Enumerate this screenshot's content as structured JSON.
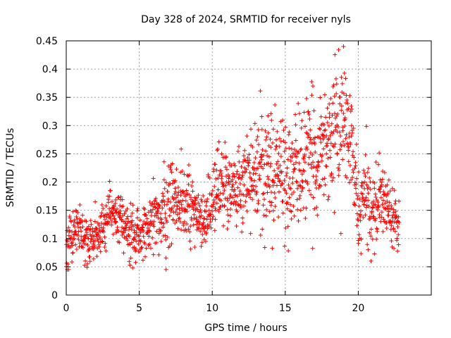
{
  "chart_data": {
    "type": "scatter",
    "title": "Day 328 of 2024, SRMTID for receiver nyls",
    "xlabel": "GPS time / hours",
    "ylabel": "SRMTID / TECUs",
    "xlim": [
      0,
      25
    ],
    "ylim": [
      0,
      0.45
    ],
    "xticks": [
      0,
      5,
      10,
      15,
      20
    ],
    "xtick_labels": [
      "0",
      "5",
      "10",
      "15",
      "20"
    ],
    "yticks": [
      0,
      0.05,
      0.1,
      0.15,
      0.2,
      0.25,
      0.3,
      0.35,
      0.4,
      0.45
    ],
    "ytick_labels": [
      "0",
      "0.05",
      "0.1",
      "0.15",
      "0.2",
      "0.25",
      "0.3",
      "0.35",
      "0.4",
      "0.45"
    ],
    "grid": true,
    "marker": "+",
    "marker_color": "#ff0000",
    "x_range_of_data": [
      0,
      22.8
    ],
    "trend": {
      "x": [
        0,
        0.5,
        1,
        1.5,
        2,
        2.5,
        3,
        3.5,
        4,
        4.5,
        5,
        5.5,
        6,
        6.5,
        7,
        7.5,
        8,
        8.5,
        9,
        9.5,
        10,
        10.5,
        11,
        11.5,
        12,
        12.5,
        13,
        13.5,
        14,
        14.5,
        15,
        15.5,
        16,
        16.5,
        17,
        17.5,
        18,
        18.5,
        19,
        19.5,
        20,
        20.5,
        21,
        21.5,
        22,
        22.5,
        22.8
      ],
      "y": [
        0.08,
        0.12,
        0.11,
        0.09,
        0.11,
        0.12,
        0.16,
        0.13,
        0.12,
        0.11,
        0.1,
        0.11,
        0.13,
        0.14,
        0.16,
        0.18,
        0.17,
        0.15,
        0.13,
        0.12,
        0.18,
        0.19,
        0.2,
        0.19,
        0.2,
        0.21,
        0.22,
        0.22,
        0.23,
        0.22,
        0.21,
        0.2,
        0.23,
        0.24,
        0.24,
        0.26,
        0.28,
        0.3,
        0.31,
        0.27,
        0.14,
        0.18,
        0.15,
        0.17,
        0.16,
        0.14,
        0.13
      ]
    },
    "spread": [
      0.03,
      0.03,
      0.03,
      0.03,
      0.03,
      0.03,
      0.03,
      0.03,
      0.03,
      0.03,
      0.03,
      0.03,
      0.04,
      0.04,
      0.06,
      0.06,
      0.05,
      0.04,
      0.04,
      0.05,
      0.05,
      0.05,
      0.05,
      0.05,
      0.05,
      0.06,
      0.06,
      0.07,
      0.07,
      0.07,
      0.07,
      0.07,
      0.07,
      0.07,
      0.07,
      0.07,
      0.07,
      0.07,
      0.07,
      0.06,
      0.05,
      0.05,
      0.05,
      0.04,
      0.04,
      0.03,
      0.03
    ],
    "n_points": 1500
  }
}
